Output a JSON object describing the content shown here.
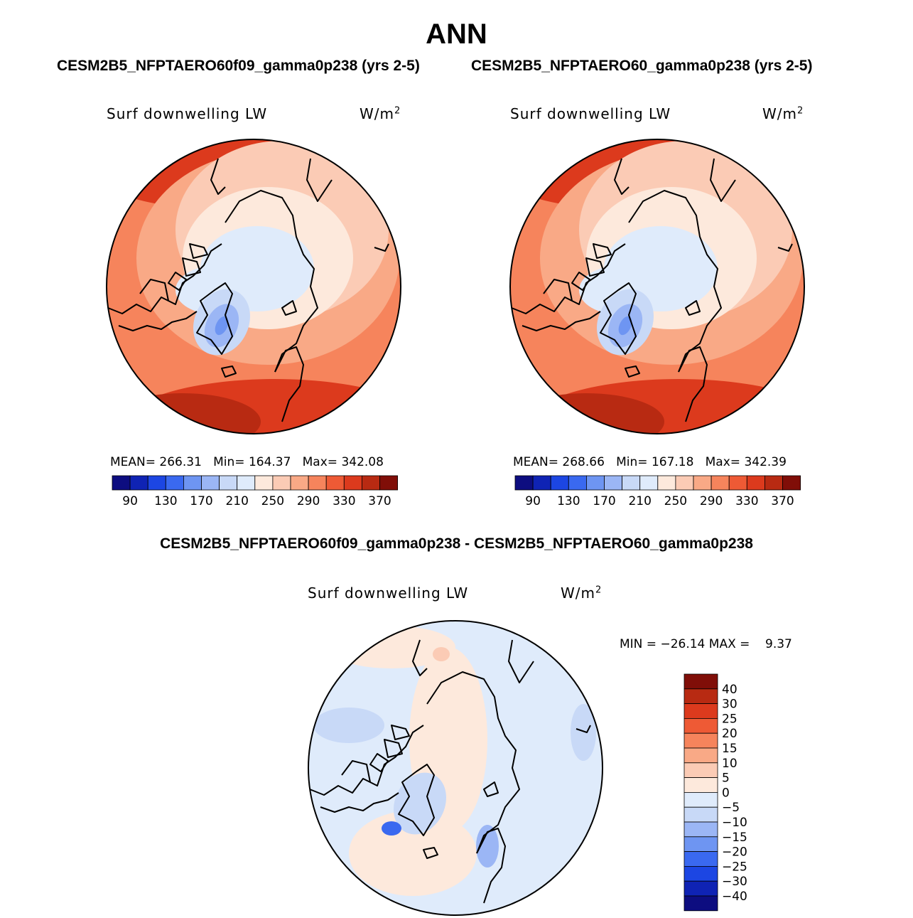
{
  "figure": {
    "title": "ANN",
    "panel_left_title": "CESM2B5_NFPTAERO60f09_gamma0p238 (yrs 2-5)",
    "panel_right_title": "CESM2B5_NFPTAERO60_gamma0p238 (yrs 2-5)",
    "diff_title": "CESM2B5_NFPTAERO60f09_gamma0p238 - CESM2B5_NFPTAERO60_gamma0p238"
  },
  "chart_data": [
    {
      "type": "heatmap",
      "projection": "north-polar-stereographic",
      "title": "CESM2B5_NFPTAERO60f09_gamma0p238 (yrs 2-5)",
      "variable": "Surf downwelling LW",
      "units_base": "W/m",
      "units_exp": "2",
      "stats": {
        "mean_label": "MEAN=",
        "mean": "266.31",
        "min_label": "Min=",
        "min": "164.37",
        "max_label": "Max=",
        "max": "342.08"
      },
      "colorbar_ticks": [
        "90",
        "130",
        "170",
        "210",
        "250",
        "290",
        "330",
        "370"
      ]
    },
    {
      "type": "heatmap",
      "projection": "north-polar-stereographic",
      "title": "CESM2B5_NFPTAERO60_gamma0p238 (yrs 2-5)",
      "variable": "Surf downwelling LW",
      "units_base": "W/m",
      "units_exp": "2",
      "stats": {
        "mean_label": "MEAN=",
        "mean": "268.66",
        "min_label": "Min=",
        "min": "167.18",
        "max_label": "Max=",
        "max": "342.39"
      },
      "colorbar_ticks": [
        "90",
        "130",
        "170",
        "210",
        "250",
        "290",
        "330",
        "370"
      ]
    },
    {
      "type": "heatmap",
      "projection": "north-polar-stereographic",
      "title": "CESM2B5_NFPTAERO60f09_gamma0p238 - CESM2B5_NFPTAERO60_gamma0p238",
      "variable": "Surf downwelling LW",
      "units_base": "W/m",
      "units_exp": "2",
      "stats": {
        "min_label": "MIN =",
        "min": "−26.14",
        "max_label": "MAX =",
        "max": "9.37"
      },
      "colorbar_ticks": [
        "40",
        "30",
        "25",
        "20",
        "15",
        "10",
        "5",
        "0",
        "−5",
        "−10",
        "−15",
        "−20",
        "−25",
        "−30",
        "−40"
      ]
    }
  ],
  "colors": {
    "seq_colormap": [
      "#0d0d80",
      "#0f23b4",
      "#1c46e3",
      "#3a69f0",
      "#6e95f2",
      "#9bb6f5",
      "#c8d9f7",
      "#dfebfb",
      "#fde9dc",
      "#fbcbb5",
      "#f9a986",
      "#f6845c",
      "#ee5a35",
      "#dc3a1d",
      "#b82a12",
      "#800e08"
    ],
    "diff_colormap": [
      "#800e08",
      "#b82a12",
      "#dc3a1d",
      "#ee5a35",
      "#f6845c",
      "#f9a986",
      "#fbcbb5",
      "#fde9dc",
      "#dfebfb",
      "#c8d9f7",
      "#9bb6f5",
      "#6e95f2",
      "#3a69f0",
      "#1c46e3",
      "#0f23b4",
      "#0d0d80"
    ]
  }
}
